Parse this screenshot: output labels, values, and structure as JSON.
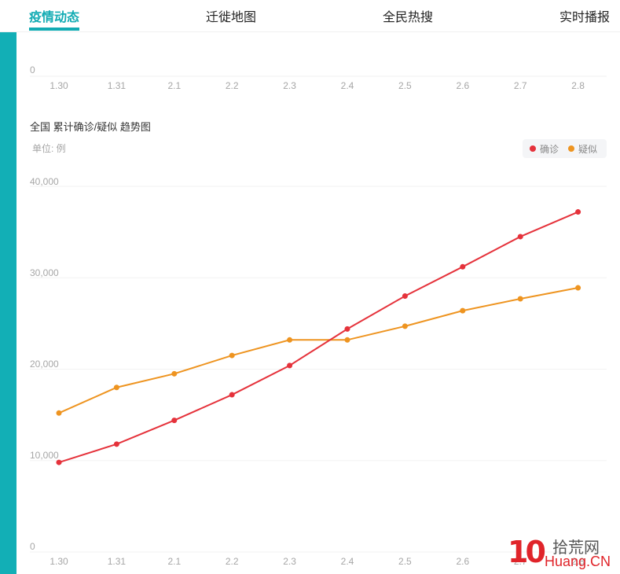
{
  "tabs": [
    {
      "label": "疫情动态",
      "active": true
    },
    {
      "label": "迁徙地图",
      "active": false
    },
    {
      "label": "全民热搜",
      "active": false
    },
    {
      "label": "实时播报",
      "active": false
    }
  ],
  "colors": {
    "accent": "#12abb3",
    "confirmed": "#e5323b",
    "suspected": "#ee9420",
    "grid": "#f2f2f2",
    "axis_text": "#a6a6a6"
  },
  "top_chart_fragment": {
    "y_label": "0",
    "x_labels": [
      "1.30",
      "1.31",
      "2.1",
      "2.2",
      "2.3",
      "2.4",
      "2.5",
      "2.6",
      "2.7",
      "2.8"
    ]
  },
  "trend_chart": {
    "title": "全国 累计确诊/疑似 趋势图",
    "unit": "单位: 例",
    "legend": {
      "confirmed": "确诊",
      "suspected": "疑似"
    },
    "y_ticks": [
      "40,000",
      "30,000",
      "20,000",
      "10,000",
      "0"
    ],
    "x_labels": [
      "1.30",
      "1.31",
      "2.1",
      "2.2",
      "2.3",
      "2.4",
      "2.5",
      "2.6",
      "2.7",
      "2.8"
    ]
  },
  "watermark": {
    "number": "10",
    "cn": "拾荒网",
    "en": "Huang.CN"
  },
  "chart_data": {
    "type": "line",
    "title": "全国 累计确诊/疑似 趋势图",
    "xlabel": "",
    "ylabel": "单位: 例",
    "categories": [
      "1.30",
      "1.31",
      "2.1",
      "2.2",
      "2.3",
      "2.4",
      "2.5",
      "2.6",
      "2.7",
      "2.8"
    ],
    "series": [
      {
        "name": "确诊",
        "color": "#e5323b",
        "values": [
          9800,
          11800,
          14400,
          17200,
          20400,
          24400,
          28000,
          31200,
          34500,
          37200
        ]
      },
      {
        "name": "疑似",
        "color": "#ee9420",
        "values": [
          15200,
          18000,
          19500,
          21500,
          23200,
          23200,
          24700,
          26400,
          27700,
          28900
        ]
      }
    ],
    "ylim": [
      0,
      40000
    ],
    "y_ticks": [
      0,
      10000,
      20000,
      30000,
      40000
    ],
    "grid": true,
    "legend_position": "top-right"
  }
}
